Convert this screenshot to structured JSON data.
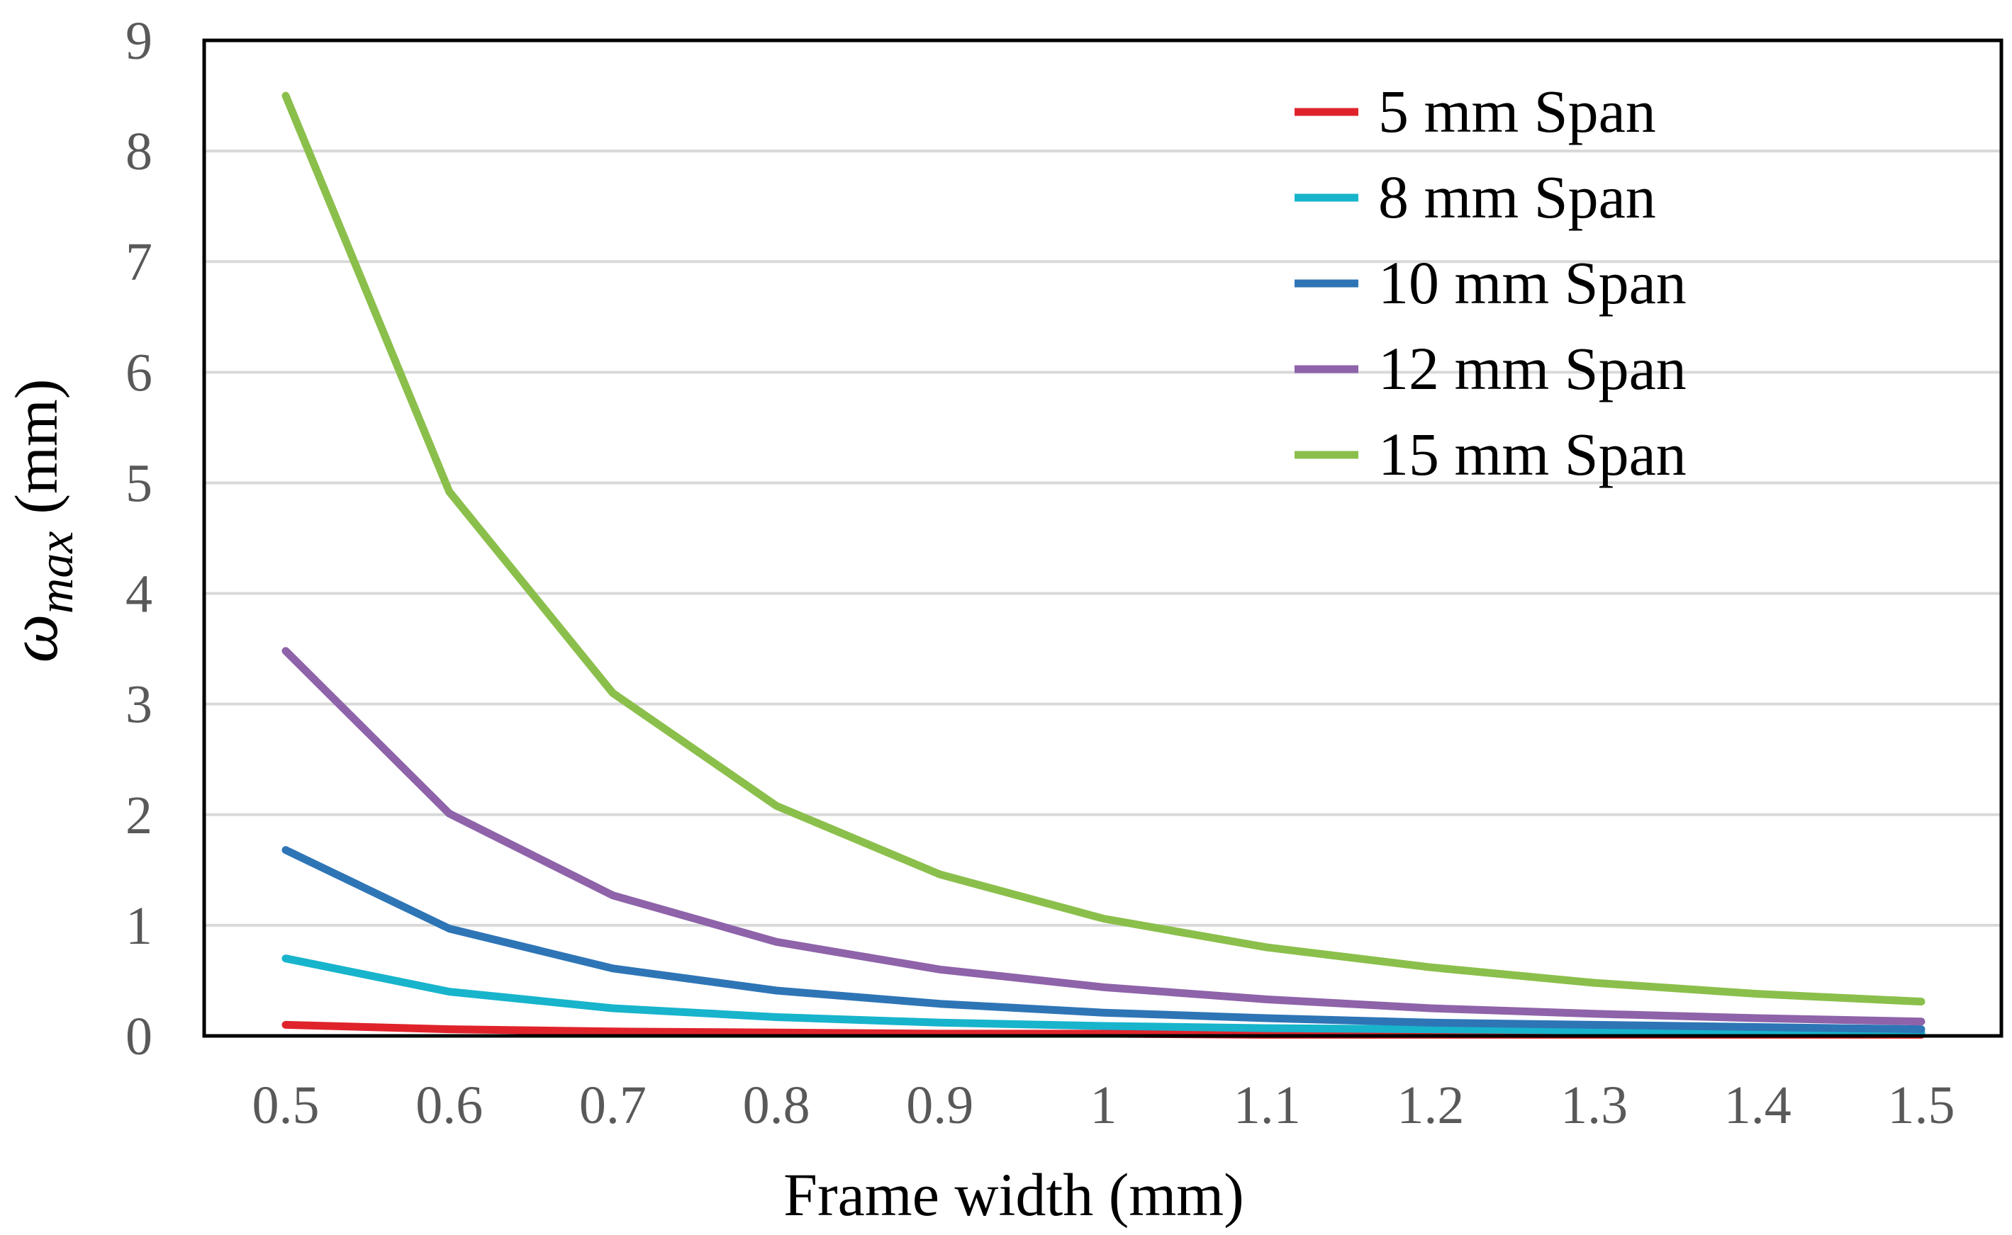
{
  "chart_data": {
    "type": "line",
    "title": "",
    "xlabel": "Frame width (mm)",
    "ylabel_symbol": "ω",
    "ylabel_subscript": "max",
    "ylabel_unit": "(mm)",
    "x": [
      0.5,
      0.6,
      0.7,
      0.8,
      0.9,
      1.0,
      1.1,
      1.2,
      1.3,
      1.4,
      1.5
    ],
    "x_tick_labels": [
      "0.5",
      "0.6",
      "0.7",
      "0.8",
      "0.9",
      "1",
      "1.1",
      "1.2",
      "1.3",
      "1.4",
      "1.5"
    ],
    "y_tick_labels": [
      "0",
      "1",
      "2",
      "3",
      "4",
      "5",
      "6",
      "7",
      "8",
      "9"
    ],
    "ylim": [
      0,
      9
    ],
    "grid": true,
    "legend_position": "top-right",
    "series": [
      {
        "name": "5 mm Span",
        "color": "#e0232b",
        "values": [
          0.1,
          0.06,
          0.04,
          0.03,
          0.02,
          0.02,
          0.01,
          0.01,
          0.01,
          0.01,
          0.01
        ]
      },
      {
        "name": "8 mm Span",
        "color": "#17b4cc",
        "values": [
          0.7,
          0.4,
          0.25,
          0.17,
          0.12,
          0.09,
          0.07,
          0.06,
          0.05,
          0.04,
          0.03
        ]
      },
      {
        "name": "10 mm Span",
        "color": "#2e75b6",
        "values": [
          1.68,
          0.97,
          0.61,
          0.41,
          0.29,
          0.21,
          0.16,
          0.12,
          0.1,
          0.08,
          0.06
        ]
      },
      {
        "name": "12 mm Span",
        "color": "#8e63a9",
        "values": [
          3.48,
          2.01,
          1.27,
          0.85,
          0.6,
          0.44,
          0.33,
          0.25,
          0.2,
          0.16,
          0.13
        ]
      },
      {
        "name": "15 mm Span",
        "color": "#8bbf4b",
        "values": [
          8.5,
          4.92,
          3.1,
          2.08,
          1.46,
          1.06,
          0.8,
          0.62,
          0.48,
          0.38,
          0.31
        ]
      }
    ]
  }
}
